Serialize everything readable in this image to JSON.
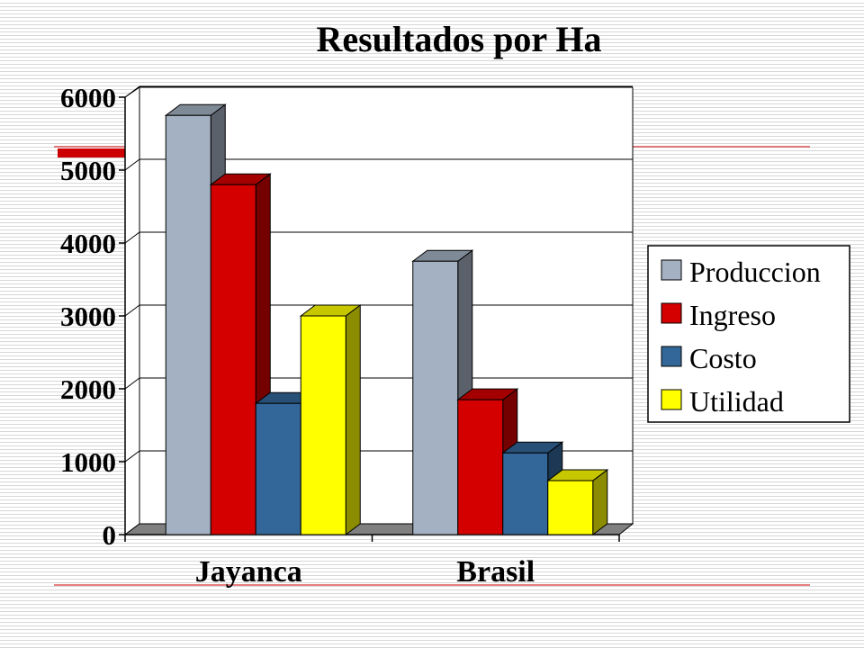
{
  "chart_data": {
    "type": "bar",
    "title": "Resultados por Ha",
    "categories": [
      "Jayanca",
      "Brasil"
    ],
    "series": [
      {
        "name": "Produccion",
        "values": [
          5750,
          3750
        ]
      },
      {
        "name": "Ingreso",
        "values": [
          4800,
          1850
        ]
      },
      {
        "name": "Costo",
        "values": [
          1800,
          1120
        ]
      },
      {
        "name": "Utilidad",
        "values": [
          3000,
          740
        ]
      }
    ],
    "y_ticks": [
      "0",
      "1000",
      "2000",
      "3000",
      "4000",
      "5000",
      "6000"
    ],
    "ylim": [
      0,
      6000
    ],
    "grid": true,
    "legend_position": "right",
    "three_d": true,
    "colors": {
      "Produccion": "#a3b1c2",
      "Ingreso": "#d40000",
      "Costo": "#336699",
      "Utilidad": "#ffff00",
      "accent_line": "#cc0000"
    }
  }
}
